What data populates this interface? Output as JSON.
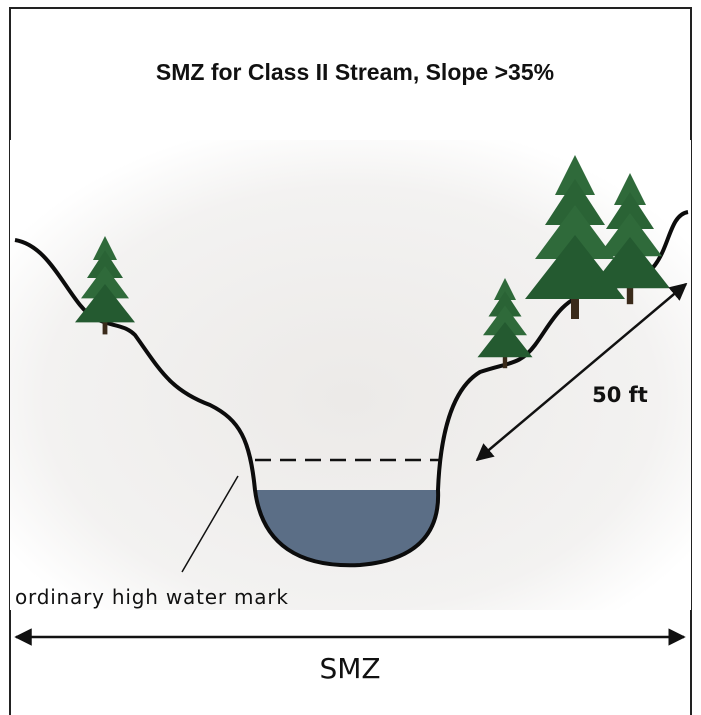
{
  "title": "SMZ for Class II Stream, Slope >35%",
  "slope_distance_label": "50 ft",
  "ohwm_label": "ordinary high water mark",
  "zone_label": "SMZ"
}
